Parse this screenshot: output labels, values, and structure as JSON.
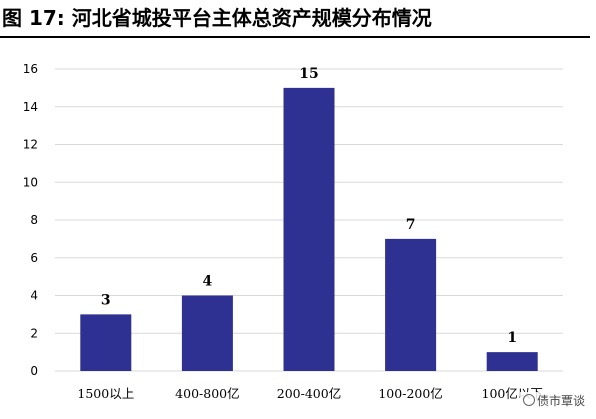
{
  "figure": {
    "title": "图 17:  河北省城投平台主体总资产规模分布情况"
  },
  "watermark": {
    "text": "债市覃谈",
    "icon": "wechat-icon"
  },
  "chart_data": {
    "type": "bar",
    "categories": [
      "1500以上",
      "400-800亿",
      "200-400亿",
      "100-200亿",
      "100亿以下"
    ],
    "values": [
      3,
      4,
      15,
      7,
      1
    ],
    "ylim": [
      0,
      16
    ],
    "yticks": [
      0,
      2,
      4,
      6,
      8,
      10,
      12,
      14,
      16
    ],
    "grid": true,
    "bar_color": "#2e3192",
    "grid_color": "#d9d9d9"
  }
}
